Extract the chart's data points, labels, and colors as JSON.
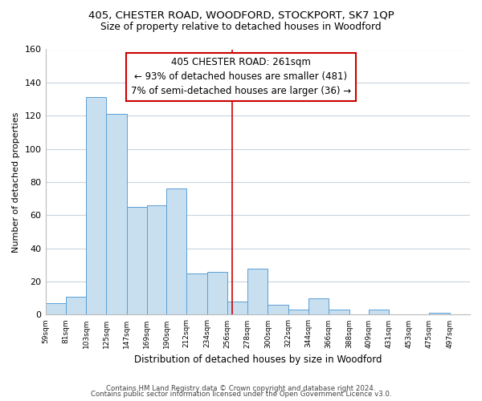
{
  "title1": "405, CHESTER ROAD, WOODFORD, STOCKPORT, SK7 1QP",
  "title2": "Size of property relative to detached houses in Woodford",
  "xlabel": "Distribution of detached houses by size in Woodford",
  "ylabel": "Number of detached properties",
  "bins": [
    59,
    81,
    103,
    125,
    147,
    169,
    190,
    212,
    234,
    256,
    278,
    300,
    322,
    344,
    366,
    388,
    409,
    431,
    453,
    475,
    497
  ],
  "counts": [
    7,
    11,
    131,
    121,
    65,
    66,
    76,
    25,
    26,
    8,
    28,
    6,
    3,
    10,
    3,
    0,
    3,
    0,
    0,
    1
  ],
  "bar_color": "#c8dff0",
  "bar_edge_color": "#5a9fd4",
  "vline_x": 261,
  "vline_color": "#cc0000",
  "annotation_title": "405 CHESTER ROAD: 261sqm",
  "annotation_line1": "← 93% of detached houses are smaller (481)",
  "annotation_line2": "7% of semi-detached houses are larger (36) →",
  "annotation_box_color": "#ffffff",
  "annotation_box_edge": "#cc0000",
  "tick_labels": [
    "59sqm",
    "81sqm",
    "103sqm",
    "125sqm",
    "147sqm",
    "169sqm",
    "190sqm",
    "212sqm",
    "234sqm",
    "256sqm",
    "278sqm",
    "300sqm",
    "322sqm",
    "344sqm",
    "366sqm",
    "388sqm",
    "409sqm",
    "431sqm",
    "453sqm",
    "475sqm",
    "497sqm"
  ],
  "ylim": [
    0,
    160
  ],
  "yticks": [
    0,
    20,
    40,
    60,
    80,
    100,
    120,
    140,
    160
  ],
  "footer1": "Contains HM Land Registry data © Crown copyright and database right 2024.",
  "footer2": "Contains public sector information licensed under the Open Government Licence v3.0.",
  "bg_color": "#ffffff",
  "grid_color": "#c8d4e0"
}
